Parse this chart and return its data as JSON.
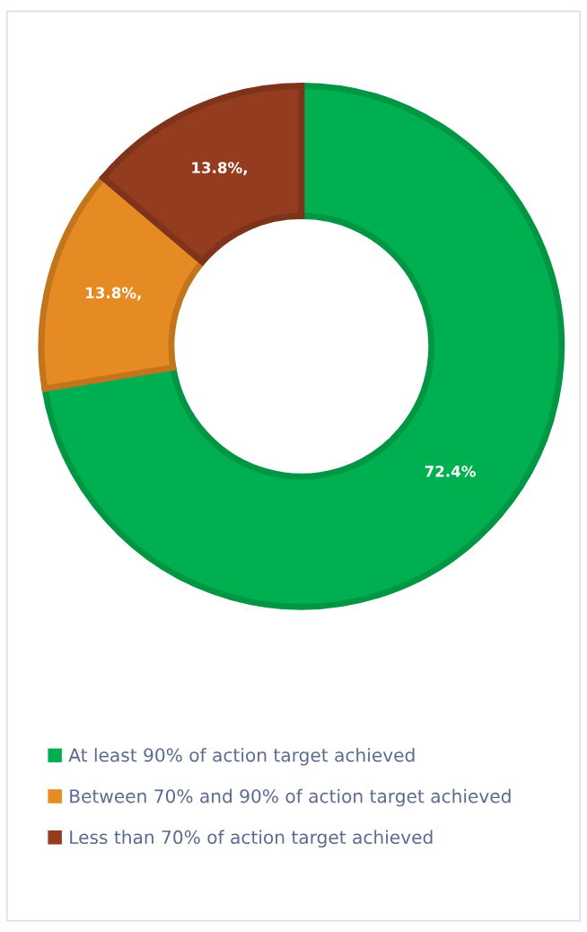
{
  "chart_data": {
    "type": "donut",
    "categories": [
      "At least 90% of action target achieved",
      "Between 70% and 90% of action target achieved",
      "Less than 70% of action target achieved"
    ],
    "values": [
      72.4,
      13.8,
      13.8
    ],
    "colors": [
      "#00b050",
      "#e68a23",
      "#943c1f"
    ],
    "value_labels": [
      "72.4%",
      "13.8%,",
      "13.8%,"
    ],
    "legend": "bottom"
  }
}
